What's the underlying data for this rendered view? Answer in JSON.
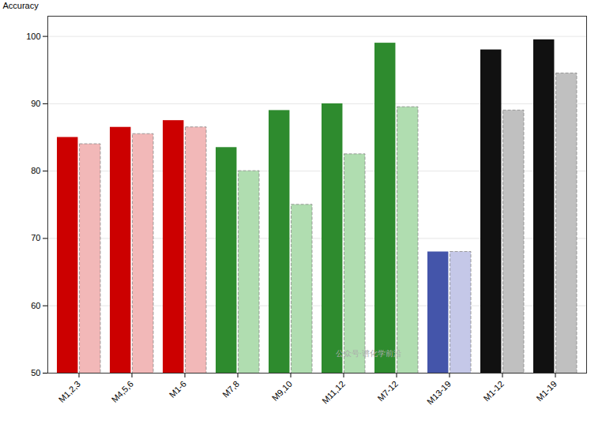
{
  "chart_data": {
    "type": "bar",
    "categories": [
      "M1,2,3",
      "M4,5,6",
      "M1-6",
      "M7,8",
      "M9,10",
      "M11,12",
      "M7-12",
      "M13-19",
      "M1-12",
      "M1-19"
    ],
    "series": [
      {
        "values": [
          85.0,
          86.5,
          87.5,
          83.5,
          89.0,
          90.0,
          99.0,
          68.0,
          98.0,
          99.5
        ],
        "colors": [
          "#cc0000",
          "#cc0000",
          "#cc0000",
          "#2e8b2e",
          "#2e8b2e",
          "#2e8b2e",
          "#2e8b2e",
          "#4455aa",
          "#111111",
          "#111111"
        ],
        "line_style": "solid"
      },
      {
        "values": [
          84.0,
          85.5,
          86.5,
          80.0,
          75.0,
          82.5,
          89.5,
          68.0,
          89.0,
          94.5
        ],
        "colors": [
          "#f2b8b8",
          "#f2b8b8",
          "#f2b8b8",
          "#b0ddb0",
          "#b0ddb0",
          "#b0ddb0",
          "#b0ddb0",
          "#c5c8e8",
          "#c0c0c0",
          "#c0c0c0"
        ],
        "line_style": "dashed"
      }
    ],
    "ylabel": "Accuracy",
    "ylim": [
      50,
      103
    ],
    "yticks": [
      50,
      60,
      70,
      80,
      90,
      100
    ],
    "grid": true,
    "annotations": [
      "公众号·谱化学前沿"
    ]
  }
}
